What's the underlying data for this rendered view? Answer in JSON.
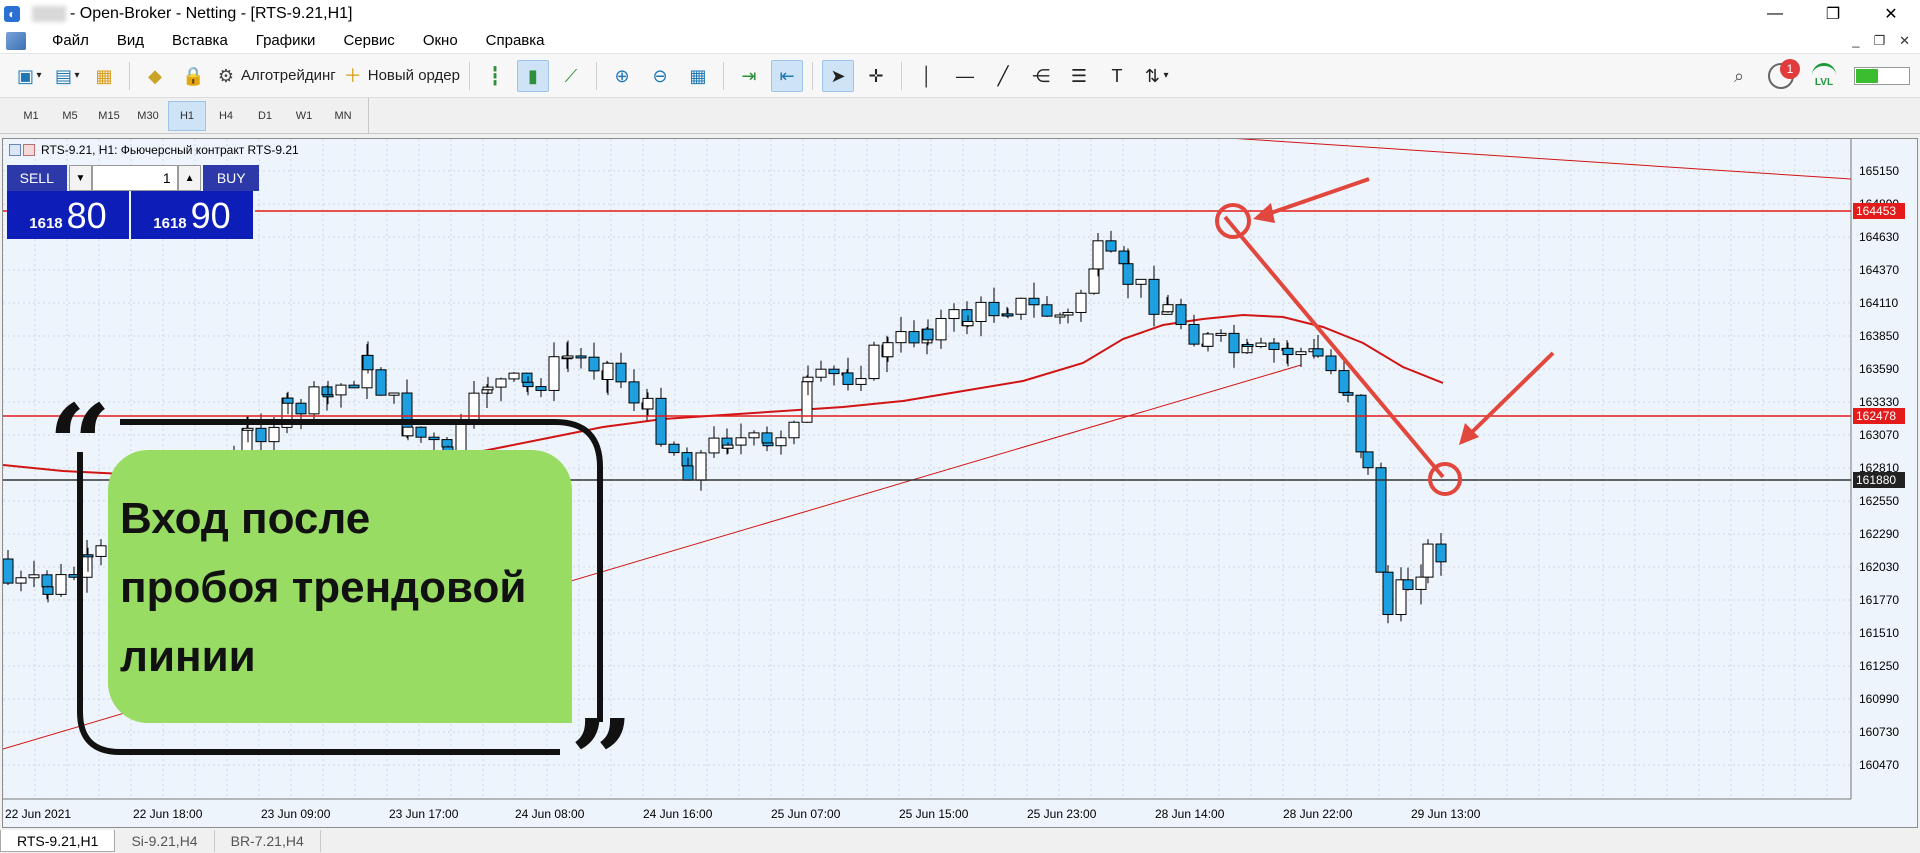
{
  "window": {
    "title": "- Open-Broker - Netting - [RTS-9.21,H1]",
    "controls": [
      "—",
      "❐",
      "✕"
    ]
  },
  "menu": {
    "items": [
      "Файл",
      "Вид",
      "Вставка",
      "Графики",
      "Сервис",
      "Окно",
      "Справка"
    ],
    "mdi_controls": [
      "_",
      "❐",
      "✕"
    ]
  },
  "toolbar": {
    "algotrading_label": "Алготрейдинг",
    "new_order_label": "Новый ордер",
    "notification_count": "1",
    "lvl_label": "LVL"
  },
  "timeframes": {
    "items": [
      "M1",
      "M5",
      "M15",
      "M30",
      "H1",
      "H4",
      "D1",
      "W1",
      "MN"
    ],
    "active": "H1"
  },
  "chart": {
    "caption": "RTS-9.21, H1:  Фьючерсный контракт RTS-9.21",
    "price_labels": [
      "165150",
      "164890",
      "164630",
      "164370",
      "164110",
      "163850",
      "163590",
      "163330",
      "163070",
      "162810",
      "162550",
      "162290",
      "162030",
      "161770",
      "161510",
      "161250",
      "160990",
      "160730",
      "160470"
    ],
    "time_labels": [
      "22 Jun 2021",
      "22 Jun 18:00",
      "23 Jun 09:00",
      "23 Jun 17:00",
      "24 Jun 08:00",
      "24 Jun 16:00",
      "25 Jun 07:00",
      "25 Jun 15:00",
      "25 Jun 23:00",
      "28 Jun 14:00",
      "28 Jun 22:00",
      "29 Jun 13:00"
    ],
    "level_tags": {
      "upper": "164453",
      "lower": "162478",
      "current": "161880"
    },
    "colors": {
      "bull": "#ffffff",
      "bear": "#1ea0e0",
      "level": "#e41b1b",
      "ma": "#d11414",
      "annotation": "#e2473d"
    }
  },
  "trade_panel": {
    "sell_label": "SELL",
    "buy_label": "BUY",
    "quantity": "1",
    "sell_price_small": "1618",
    "sell_price_big": "80",
    "buy_price_small": "1618",
    "buy_price_big": "90"
  },
  "quote": {
    "lines": [
      "Вход после",
      "пробоя трендовой",
      "линии"
    ],
    "open_mark": "“",
    "close_mark": "”"
  },
  "tabs": {
    "items": [
      "RTS-9.21,H1",
      "Si-9.21,H4",
      "BR-7.21,H4"
    ],
    "active": "RTS-9.21,H1"
  }
}
